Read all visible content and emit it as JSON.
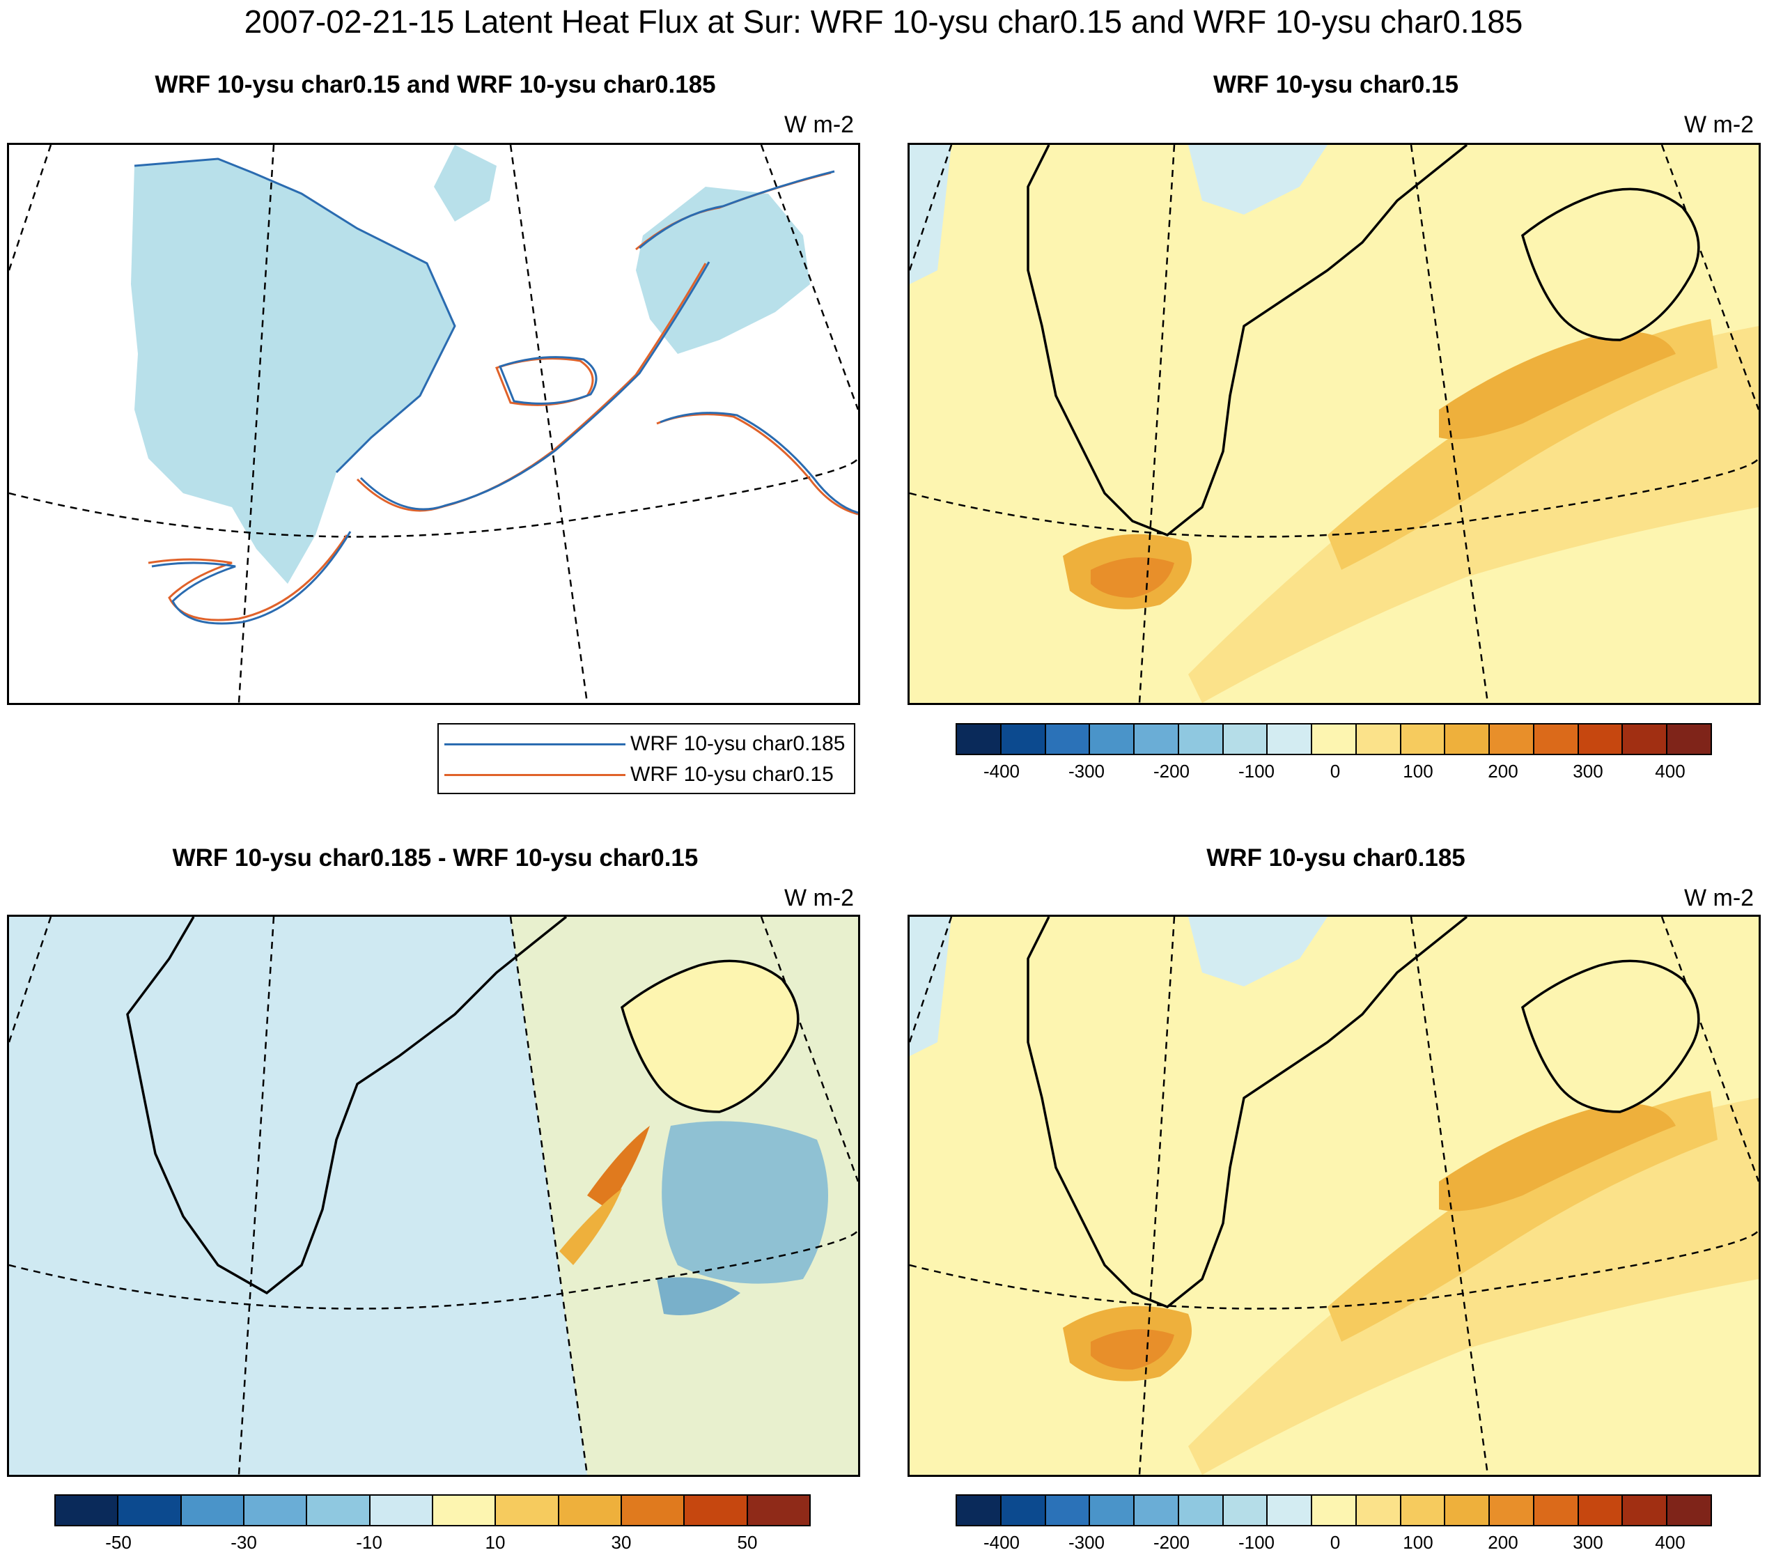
{
  "title": "2007-02-21-15 Latent Heat Flux at Sur: WRF 10-ysu char0.15 and WRF 10-ysu char0.185",
  "panels": {
    "contour": {
      "title": "WRF 10-ysu char0.15 and WRF 10-ysu char0.185",
      "units": "W m-2"
    },
    "char015": {
      "title": "WRF 10-ysu char0.15",
      "units": "W m-2"
    },
    "diff": {
      "title": "WRF 10-ysu char0.185 - WRF 10-ysu char0.15",
      "units": "W m-2"
    },
    "char0185": {
      "title": "WRF 10-ysu char0.185",
      "units": "W m-2"
    }
  },
  "legend": [
    {
      "label": "WRF 10-ysu char0.185",
      "color": "#2a6bb0"
    },
    {
      "label": "WRF 10-ysu char0.15",
      "color": "#e0622a"
    }
  ],
  "colors": {
    "flux_scale": [
      "#0a2a5a",
      "#0c4a8f",
      "#2b72b8",
      "#4a94c9",
      "#6aadd6",
      "#8fc8e0",
      "#b5dde8",
      "#d3ecf2",
      "#fdf5b0",
      "#fbe28a",
      "#f6cb5e",
      "#eeb03c",
      "#e88f2a",
      "#db6a1a",
      "#c6470f",
      "#a12f12",
      "#7f2419"
    ],
    "diff_scale": [
      "#0a2a5a",
      "#0c4a8f",
      "#4a94c9",
      "#6aadd6",
      "#8fc8e0",
      "#cfe9f2",
      "#fdf5b0",
      "#f6cb5e",
      "#eeb03c",
      "#e07a1e",
      "#c6470f",
      "#8f2a18"
    ],
    "coast": "#000000",
    "shaded_positive": "#b8e0ea"
  },
  "chart_data": [
    {
      "type": "heatmap",
      "panel": "WRF 10-ysu char0.15 and WRF 10-ysu char0.185",
      "series": [
        {
          "name": "WRF 10-ysu char0.185"
        },
        {
          "name": "WRF 10-ysu char0.15"
        }
      ]
    },
    {
      "type": "heatmap",
      "panel": "WRF 10-ysu char0.15",
      "colorbar_ticks": [
        "-400",
        "-300",
        "-200",
        "-100",
        "0",
        "100",
        "200",
        "300",
        "400"
      ],
      "colorbar_range": [
        -450,
        450
      ],
      "colorbar_levels": 17,
      "field_max_approx": 300
    },
    {
      "type": "heatmap",
      "panel": "WRF 10-ysu char0.185 - WRF 10-ysu char0.15",
      "colorbar_ticks": [
        "-50",
        "-30",
        "-10",
        "10",
        "30",
        "50"
      ],
      "colorbar_range": [
        -60,
        60
      ],
      "colorbar_levels": 12
    },
    {
      "type": "heatmap",
      "panel": "WRF 10-ysu char0.185",
      "colorbar_ticks": [
        "-400",
        "-300",
        "-200",
        "-100",
        "0",
        "100",
        "200",
        "300",
        "400"
      ],
      "colorbar_range": [
        -450,
        450
      ],
      "colorbar_levels": 17,
      "field_max_approx": 300
    }
  ]
}
